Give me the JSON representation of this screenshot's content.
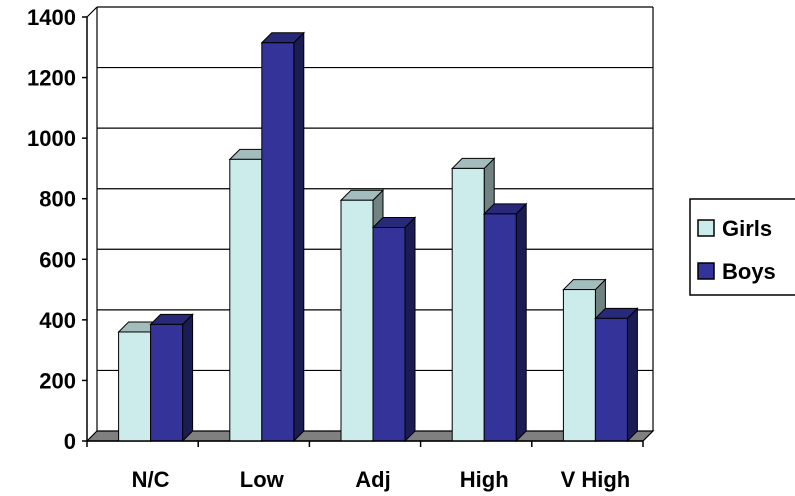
{
  "chart_data": {
    "type": "bar",
    "title": "",
    "xlabel": "",
    "ylabel": "",
    "categories": [
      "N/C",
      "Low",
      "Adj",
      "High",
      "V High"
    ],
    "series": [
      {
        "name": "Girls",
        "values": [
          360,
          930,
          795,
          900,
          500
        ],
        "color": "#CCECEC"
      },
      {
        "name": "Boys",
        "values": [
          385,
          1315,
          705,
          750,
          405
        ],
        "color": "#333399"
      }
    ],
    "ylim": [
      0,
      1400
    ],
    "yticks": [
      "0",
      "200",
      "400",
      "600",
      "800",
      "1000",
      "1200",
      "1400"
    ],
    "grid": true,
    "legend_position": "right",
    "style": "3d-clustered-bar"
  }
}
